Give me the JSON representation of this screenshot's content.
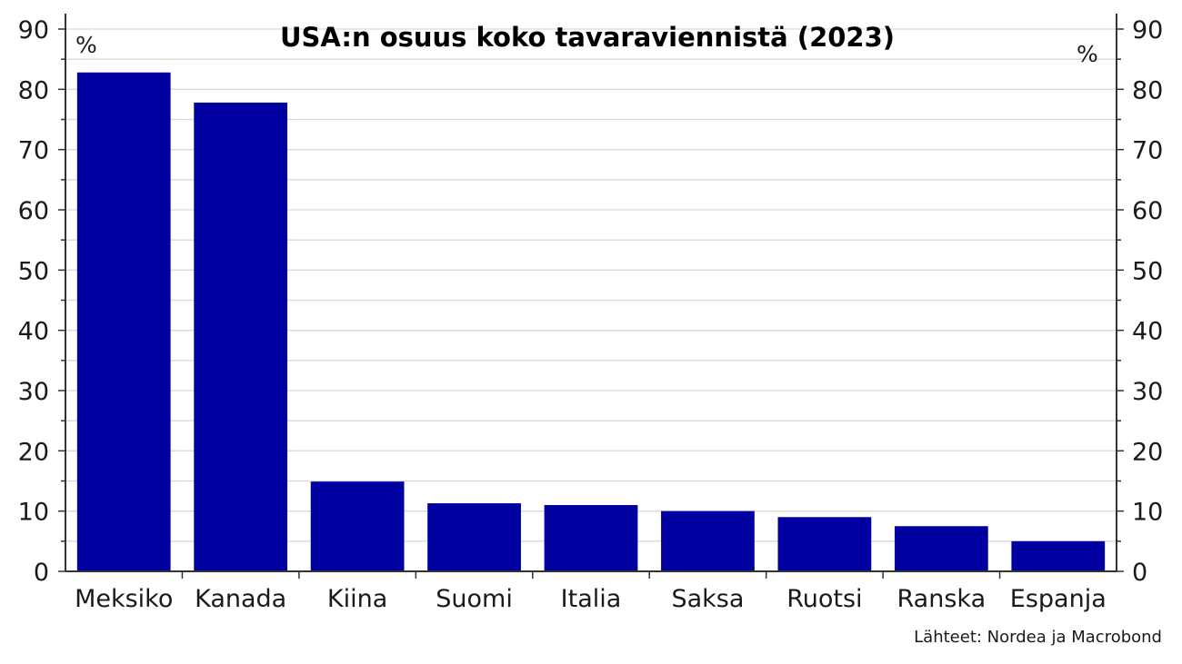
{
  "chart_data": {
    "type": "bar",
    "title": "USA:n osuus koko tavaraviennistä (2023)",
    "unit_left": "%",
    "unit_right": "%",
    "categories": [
      "Meksiko",
      "Kanada",
      "Kiina",
      "Suomi",
      "Italia",
      "Saksa",
      "Ruotsi",
      "Ranska",
      "Espanja"
    ],
    "values": [
      82.8,
      77.8,
      14.9,
      11.3,
      11.0,
      10.0,
      9.0,
      7.5,
      5.0
    ],
    "ylim": [
      0,
      90
    ],
    "yticks": [
      0,
      10,
      20,
      30,
      40,
      50,
      60,
      70,
      80,
      90
    ],
    "ytick_labels": [
      "0",
      "10",
      "20",
      "30",
      "40",
      "50",
      "60",
      "70",
      "80",
      "90"
    ],
    "grid": true,
    "bar_color": "#0000a0",
    "source": "Lähteet: Nordea ja Macrobond"
  }
}
